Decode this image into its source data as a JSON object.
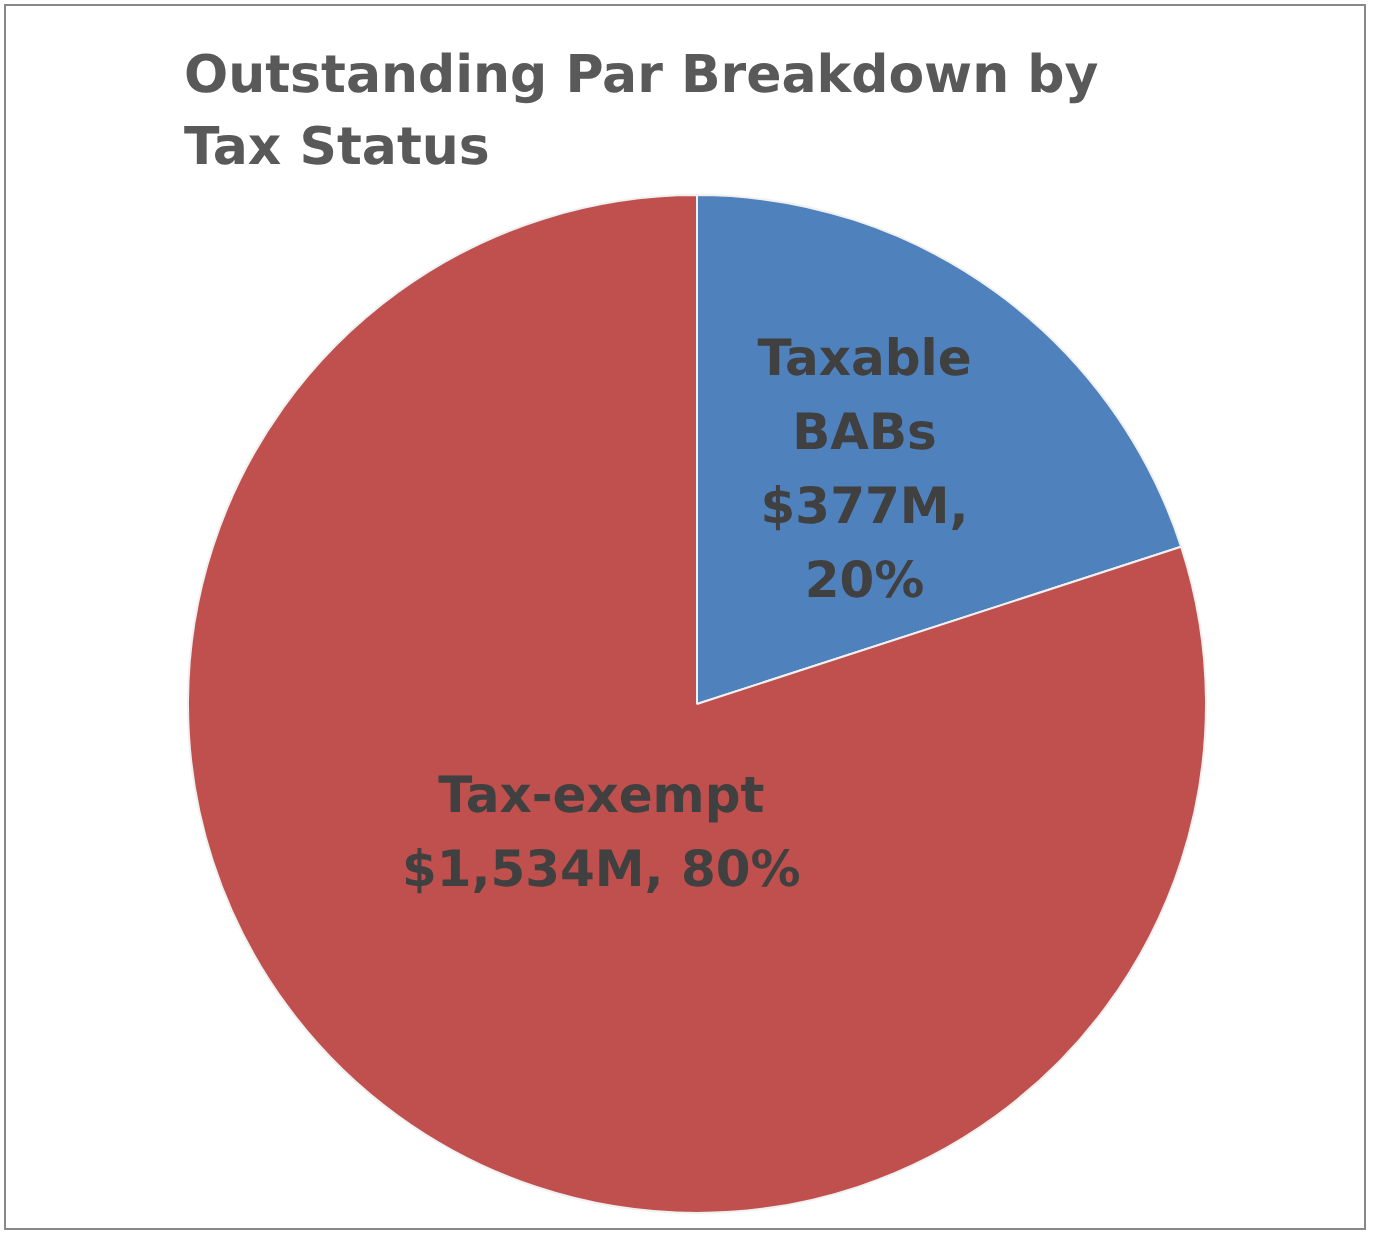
{
  "chart_data": {
    "type": "pie",
    "title": "Outstanding Par Breakdown by Tax Status",
    "categories": [
      "Taxable BABs",
      "Tax-exempt"
    ],
    "values": [
      20,
      80
    ],
    "colors": [
      "#4f81bd",
      "#c0504d"
    ],
    "value_labels": [
      "$377M, 20%",
      "$1,534M, 80%"
    ],
    "legend": false
  }
}
